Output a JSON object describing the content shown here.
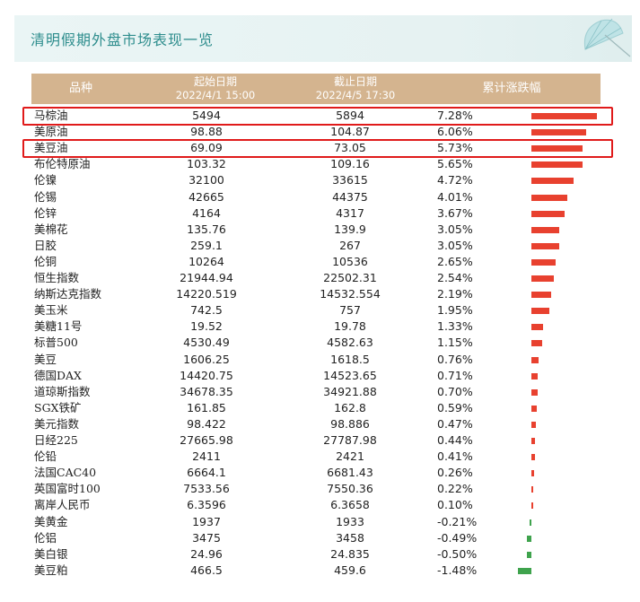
{
  "banner": {
    "title": "清明假期外盘市场表现一览"
  },
  "colors": {
    "positive": "#e8412f",
    "negative": "#3fa34d",
    "header_bg": "#d4b48f",
    "highlight": "#e01a1a"
  },
  "icons": {
    "banner_decoration": "umbrella-icon"
  },
  "chart_data": {
    "type": "table",
    "columns": [
      "品种",
      "起始日期",
      "截止日期",
      "累计涨跌幅"
    ],
    "column_subtitles": [
      "",
      "2022/4/1 15:00",
      "2022/4/5 17:30",
      ""
    ],
    "highlighted": [
      "马棕油",
      "美豆油"
    ],
    "rows": [
      {
        "name": "马棕油",
        "start": "5494",
        "end": "5894",
        "chg_label": "7.28%",
        "chg": 7.28
      },
      {
        "name": "美原油",
        "start": "98.88",
        "end": "104.87",
        "chg_label": "6.06%",
        "chg": 6.06
      },
      {
        "name": "美豆油",
        "start": "69.09",
        "end": "73.05",
        "chg_label": "5.73%",
        "chg": 5.73
      },
      {
        "name": "布伦特原油",
        "start": "103.32",
        "end": "109.16",
        "chg_label": "5.65%",
        "chg": 5.65
      },
      {
        "name": "伦镍",
        "start": "32100",
        "end": "33615",
        "chg_label": "4.72%",
        "chg": 4.72
      },
      {
        "name": "伦锡",
        "start": "42665",
        "end": "44375",
        "chg_label": "4.01%",
        "chg": 4.01
      },
      {
        "name": "伦锌",
        "start": "4164",
        "end": "4317",
        "chg_label": "3.67%",
        "chg": 3.67
      },
      {
        "name": "美棉花",
        "start": "135.76",
        "end": "139.9",
        "chg_label": "3.05%",
        "chg": 3.05
      },
      {
        "name": "日胶",
        "start": "259.1",
        "end": "267",
        "chg_label": "3.05%",
        "chg": 3.05
      },
      {
        "name": "伦铜",
        "start": "10264",
        "end": "10536",
        "chg_label": "2.65%",
        "chg": 2.65
      },
      {
        "name": "恒生指数",
        "start": "21944.94",
        "end": "22502.31",
        "chg_label": "2.54%",
        "chg": 2.54
      },
      {
        "name": "纳斯达克指数",
        "start": "14220.519",
        "end": "14532.554",
        "chg_label": "2.19%",
        "chg": 2.19
      },
      {
        "name": "美玉米",
        "start": "742.5",
        "end": "757",
        "chg_label": "1.95%",
        "chg": 1.95
      },
      {
        "name": "美糖11号",
        "start": "19.52",
        "end": "19.78",
        "chg_label": "1.33%",
        "chg": 1.33
      },
      {
        "name": "标普500",
        "start": "4530.49",
        "end": "4582.63",
        "chg_label": "1.15%",
        "chg": 1.15
      },
      {
        "name": "美豆",
        "start": "1606.25",
        "end": "1618.5",
        "chg_label": "0.76%",
        "chg": 0.76
      },
      {
        "name": "德国DAX",
        "start": "14420.75",
        "end": "14523.65",
        "chg_label": "0.71%",
        "chg": 0.71
      },
      {
        "name": "道琼斯指数",
        "start": "34678.35",
        "end": "34921.88",
        "chg_label": "0.70%",
        "chg": 0.7
      },
      {
        "name": "SGX铁矿",
        "start": "161.85",
        "end": "162.8",
        "chg_label": "0.59%",
        "chg": 0.59
      },
      {
        "name": "美元指数",
        "start": "98.422",
        "end": "98.886",
        "chg_label": "0.47%",
        "chg": 0.47
      },
      {
        "name": "日经225",
        "start": "27665.98",
        "end": "27787.98",
        "chg_label": "0.44%",
        "chg": 0.44
      },
      {
        "name": "伦铅",
        "start": "2411",
        "end": "2421",
        "chg_label": "0.41%",
        "chg": 0.41
      },
      {
        "name": "法国CAC40",
        "start": "6664.1",
        "end": "6681.43",
        "chg_label": "0.26%",
        "chg": 0.26
      },
      {
        "name": "英国富时100",
        "start": "7533.56",
        "end": "7550.36",
        "chg_label": "0.22%",
        "chg": 0.22
      },
      {
        "name": "离岸人民币",
        "start": "6.3596",
        "end": "6.3658",
        "chg_label": "0.10%",
        "chg": 0.1
      },
      {
        "name": "美黄金",
        "start": "1937",
        "end": "1933",
        "chg_label": "-0.21%",
        "chg": -0.21
      },
      {
        "name": "伦铝",
        "start": "3475",
        "end": "3458",
        "chg_label": "-0.49%",
        "chg": -0.49
      },
      {
        "name": "美白银",
        "start": "24.96",
        "end": "24.835",
        "chg_label": "-0.50%",
        "chg": -0.5
      },
      {
        "name": "美豆粕",
        "start": "466.5",
        "end": "459.6",
        "chg_label": "-1.48%",
        "chg": -1.48
      }
    ]
  }
}
